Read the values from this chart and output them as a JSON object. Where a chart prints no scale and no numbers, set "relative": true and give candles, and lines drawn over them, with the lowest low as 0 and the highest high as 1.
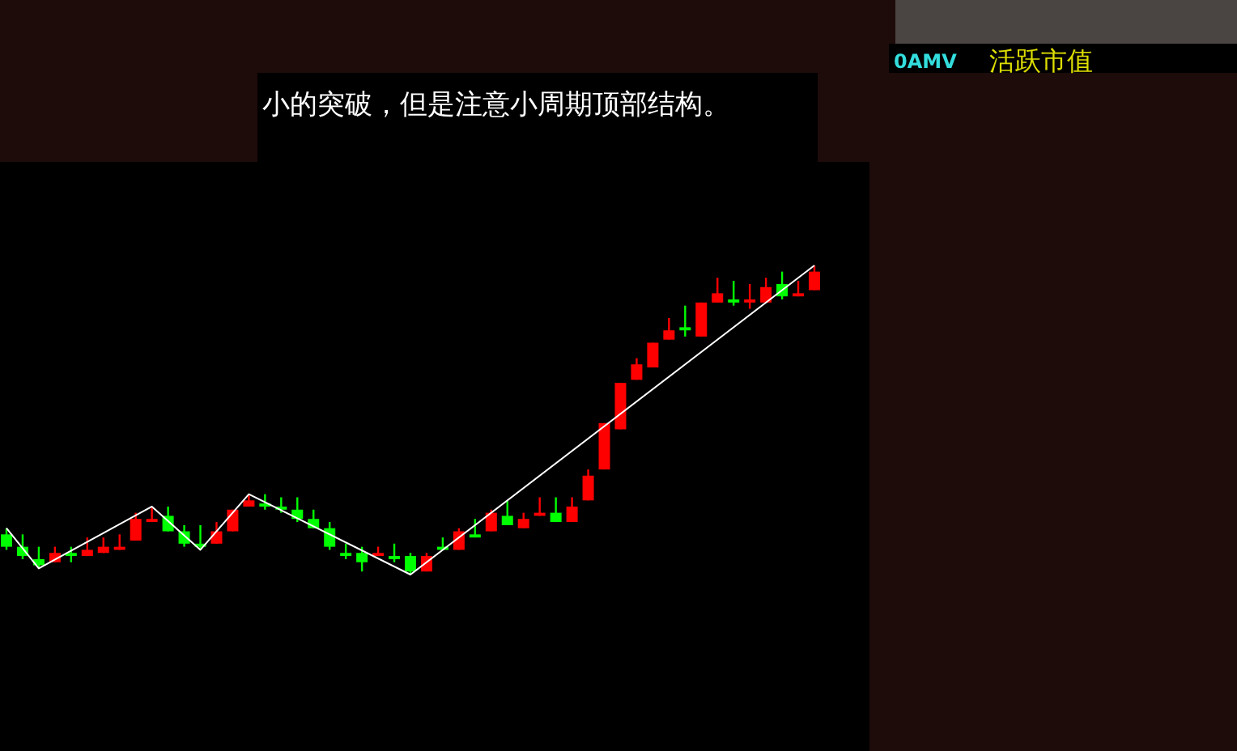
{
  "chart_data": {
    "type": "candlestick",
    "relative": true,
    "annotations": [
      "小的突破，但是注意小周期顶部结构。",
      "0AMV",
      "活跃市值"
    ],
    "categories": [
      null,
      null,
      null,
      null,
      null,
      null,
      null,
      null,
      null,
      null,
      null,
      null,
      null,
      null,
      null,
      null,
      null,
      null,
      null,
      null,
      null,
      null,
      null,
      null,
      null,
      null,
      null,
      null,
      null,
      null,
      null,
      null,
      null,
      null,
      null,
      null,
      null,
      null,
      null,
      null,
      null,
      null,
      null,
      null,
      null,
      null,
      null,
      null,
      null,
      null,
      null
    ],
    "ohlc": [
      [
        0.13,
        0.15,
        0.08,
        0.09
      ],
      [
        0.09,
        0.13,
        0.05,
        0.06
      ],
      [
        0.05,
        0.09,
        0.02,
        0.03
      ],
      [
        0.04,
        0.09,
        0.04,
        0.07
      ],
      [
        0.07,
        0.09,
        0.04,
        0.06
      ],
      [
        0.06,
        0.12,
        0.06,
        0.08
      ],
      [
        0.07,
        0.12,
        0.07,
        0.09
      ],
      [
        0.08,
        0.13,
        0.08,
        0.09
      ],
      [
        0.11,
        0.2,
        0.11,
        0.18
      ],
      [
        0.17,
        0.22,
        0.17,
        0.18
      ],
      [
        0.19,
        0.22,
        0.14,
        0.14
      ],
      [
        0.14,
        0.16,
        0.09,
        0.1
      ],
      [
        0.1,
        0.16,
        0.08,
        0.09
      ],
      [
        0.1,
        0.17,
        0.1,
        0.14
      ],
      [
        0.14,
        0.21,
        0.14,
        0.21
      ],
      [
        0.22,
        0.26,
        0.22,
        0.24
      ],
      [
        0.23,
        0.26,
        0.21,
        0.22
      ],
      [
        0.22,
        0.25,
        0.2,
        0.21
      ],
      [
        0.21,
        0.25,
        0.17,
        0.18
      ],
      [
        0.18,
        0.21,
        0.15,
        0.15
      ],
      [
        0.15,
        0.17,
        0.08,
        0.09
      ],
      [
        0.07,
        0.1,
        0.05,
        0.06
      ],
      [
        0.07,
        0.09,
        0.01,
        0.04
      ],
      [
        0.06,
        0.09,
        0.06,
        0.07
      ],
      [
        0.06,
        0.1,
        0.04,
        0.05
      ],
      [
        0.06,
        0.07,
        0,
        0.01
      ],
      [
        0.01,
        0.07,
        0.01,
        0.06
      ],
      [
        0.09,
        0.12,
        0.08,
        0.08
      ],
      [
        0.08,
        0.15,
        0.08,
        0.14
      ],
      [
        0.13,
        0.18,
        0.12,
        0.12
      ],
      [
        0.14,
        0.21,
        0.14,
        0.2
      ],
      [
        0.19,
        0.24,
        0.16,
        0.16
      ],
      [
        0.15,
        0.2,
        0.15,
        0.18
      ],
      [
        0.19,
        0.25,
        0.19,
        0.2
      ],
      [
        0.2,
        0.25,
        0.17,
        0.17
      ],
      [
        0.17,
        0.25,
        0.17,
        0.22
      ],
      [
        0.24,
        0.34,
        0.24,
        0.32
      ],
      [
        0.34,
        0.49,
        0.34,
        0.49
      ],
      [
        0.47,
        0.62,
        0.47,
        0.62
      ],
      [
        0.63,
        0.7,
        0.63,
        0.68
      ],
      [
        0.67,
        0.75,
        0.67,
        0.75
      ],
      [
        0.76,
        0.83,
        0.76,
        0.79
      ],
      [
        0.8,
        0.87,
        0.77,
        0.79
      ],
      [
        0.77,
        0.88,
        0.77,
        0.88
      ],
      [
        0.88,
        0.96,
        0.88,
        0.91
      ],
      [
        0.89,
        0.95,
        0.87,
        0.88
      ],
      [
        0.88,
        0.94,
        0.86,
        0.89
      ],
      [
        0.88,
        0.96,
        0.88,
        0.93
      ],
      [
        0.94,
        0.98,
        0.89,
        0.9
      ],
      [
        0.9,
        0.95,
        0.9,
        0.91
      ],
      [
        0.92,
        1,
        0.92,
        0.98
      ]
    ],
    "colors": [
      "#00ff00",
      "#00ff00",
      "#00ff00",
      "#ff0000",
      "#00ff00",
      "#ff0000",
      "#ff0000",
      "#ff0000",
      "#ff0000",
      "#ff0000",
      "#00ff00",
      "#00ff00",
      "#00ff00",
      "#ff0000",
      "#ff0000",
      "#ff0000",
      "#00ff00",
      "#00ff00",
      "#00ff00",
      "#00ff00",
      "#00ff00",
      "#00ff00",
      "#00ff00",
      "#ff0000",
      "#00ff00",
      "#00ff00",
      "#ff0000",
      "#00ff00",
      "#ff0000",
      "#00ff00",
      "#ff0000",
      "#00ff00",
      "#ff0000",
      "#ff0000",
      "#00ff00",
      "#ff0000",
      "#ff0000",
      "#ff0000",
      "#ff0000",
      "#ff0000",
      "#ff0000",
      "#ff0000",
      "#00ff00",
      "#ff0000",
      "#ff0000",
      "#00ff00",
      "#ff0000",
      "#ff0000",
      "#00ff00",
      "#ff0000",
      "#ff0000"
    ],
    "series": [
      {
        "type": "line",
        "color": "#ffffff",
        "values": [
          0.15,
          null,
          0.02,
          null,
          null,
          null,
          null,
          null,
          null,
          0.22,
          null,
          null,
          0.08,
          null,
          null,
          0.26,
          null,
          null,
          null,
          null,
          null,
          null,
          null,
          null,
          null,
          0,
          null,
          null,
          null,
          null,
          null,
          null,
          null,
          null,
          null,
          null,
          null,
          null,
          null,
          null,
          null,
          null,
          null,
          null,
          null,
          null,
          null,
          null,
          null,
          null,
          1
        ]
      }
    ]
  }
}
